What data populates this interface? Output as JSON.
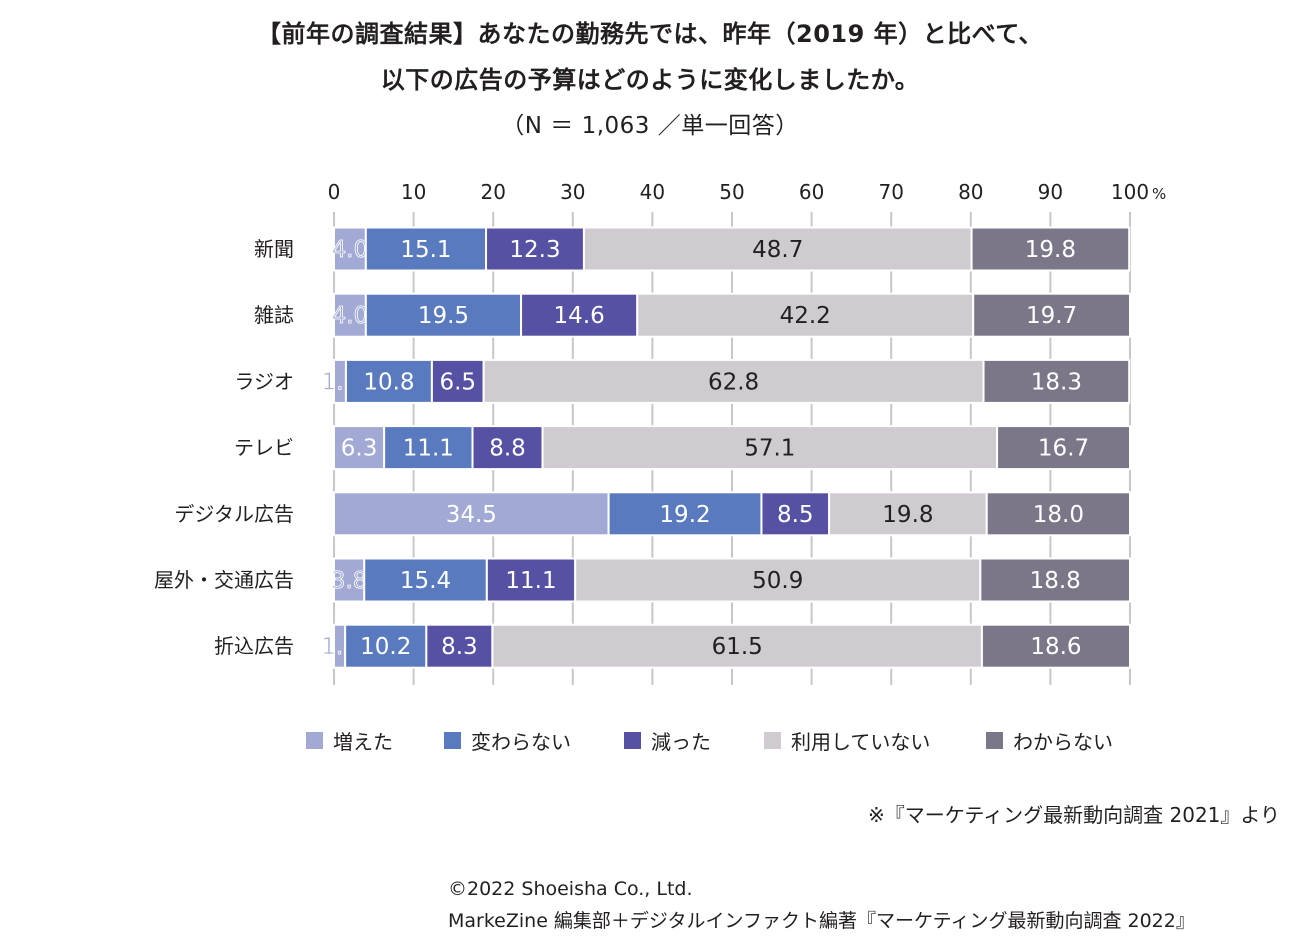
{
  "title_line1": "【前年の調査結果】あなたの勤務先では、昨年（2019 年）と比べて、",
  "title_line2": "以下の広告の予算はどのように変化しましたか。",
  "subtitle": "（N ＝ 1,063 ／単一回答）",
  "source_note": "※『マーケティング最新動向調査 2021』より",
  "copyright": "©2022 Shoeisha Co., Ltd.",
  "credit": "MarkeZine 編集部＋デジタルインファクト編著『マーケティング最新動向調査 2022』",
  "chart_data": {
    "type": "bar",
    "orientation": "horizontal",
    "stacked": true,
    "categories": [
      "新聞",
      "雑誌",
      "ラジオ",
      "テレビ",
      "デジタル広告",
      "屋外・交通広告",
      "折込広告"
    ],
    "series": [
      {
        "name": "増えた",
        "color": "#a2a9d4",
        "values": [
          4.0,
          4.0,
          1.5,
          6.3,
          34.5,
          3.8,
          1.4
        ]
      },
      {
        "name": "変わらない",
        "color": "#5a7abf",
        "values": [
          15.1,
          19.5,
          10.8,
          11.1,
          19.2,
          15.4,
          10.2
        ]
      },
      {
        "name": "減った",
        "color": "#5751a3",
        "values": [
          12.3,
          14.6,
          6.5,
          8.8,
          8.5,
          11.1,
          8.3
        ]
      },
      {
        "name": "利用していない",
        "color": "#cfcbd1",
        "values": [
          48.7,
          42.2,
          62.8,
          57.1,
          19.8,
          50.9,
          61.5
        ]
      },
      {
        "name": "わからない",
        "color": "#7b7789",
        "values": [
          19.8,
          19.7,
          18.3,
          16.7,
          18.0,
          18.8,
          18.6
        ]
      }
    ],
    "xlim": [
      0,
      100
    ],
    "xticks": [
      "0",
      "10",
      "20",
      "30",
      "40",
      "50",
      "60",
      "70",
      "80",
      "90",
      "100"
    ],
    "x_unit": "%",
    "label_colors": [
      "#ffffff",
      "#ffffff",
      "#ffffff",
      "#231f20",
      "#ffffff"
    ],
    "grid": true,
    "legend_position": "bottom"
  }
}
